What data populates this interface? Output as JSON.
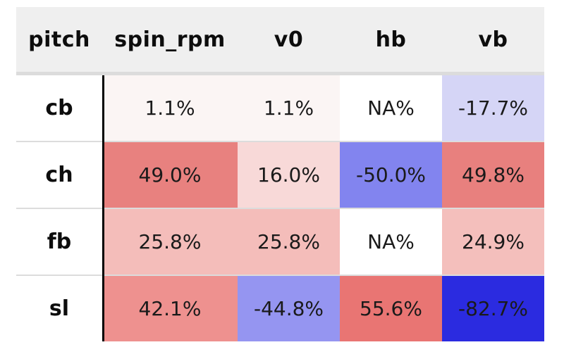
{
  "table": {
    "columns": [
      {
        "label": "pitch"
      },
      {
        "label": "spin_rpm"
      },
      {
        "label": "v0"
      },
      {
        "label": "hb"
      },
      {
        "label": "vb"
      }
    ],
    "rows": [
      {
        "pitch": "cb",
        "cells": [
          {
            "value": "1.1%",
            "bg": "#fbf5f4"
          },
          {
            "value": "1.1%",
            "bg": "#fbf5f4"
          },
          {
            "value": "NA%",
            "bg": "#ffffff"
          },
          {
            "value": "-17.7%",
            "bg": "#d5d5f6"
          }
        ]
      },
      {
        "pitch": "ch",
        "cells": [
          {
            "value": "49.0%",
            "bg": "#e8817f"
          },
          {
            "value": "16.0%",
            "bg": "#f8d9d8"
          },
          {
            "value": "-50.0%",
            "bg": "#8284ef"
          },
          {
            "value": "49.8%",
            "bg": "#e8807e"
          }
        ]
      },
      {
        "pitch": "fb",
        "cells": [
          {
            "value": "25.8%",
            "bg": "#f4bdba"
          },
          {
            "value": "25.8%",
            "bg": "#f4bdba"
          },
          {
            "value": "NA%",
            "bg": "#ffffff"
          },
          {
            "value": "24.9%",
            "bg": "#f4bfbc"
          }
        ]
      },
      {
        "pitch": "sl",
        "cells": [
          {
            "value": "42.1%",
            "bg": "#ee918f"
          },
          {
            "value": "-44.8%",
            "bg": "#9595f1"
          },
          {
            "value": "55.6%",
            "bg": "#e97573"
          },
          {
            "value": "-82.7%",
            "bg": "#2b2be0"
          }
        ]
      }
    ],
    "style_colors": {
      "header_background": "#efefef",
      "header_border": "#dcdcdc",
      "row_separator": "#dcdcdc",
      "pitch_divider": "#000000",
      "positive_color": "red",
      "negative_color": "blue"
    }
  },
  "chart_data": {
    "type": "heatmap",
    "title": "",
    "rows": [
      "cb",
      "ch",
      "fb",
      "sl"
    ],
    "columns": [
      "spin_rpm",
      "v0",
      "hb",
      "vb"
    ],
    "row_axis_label": "pitch",
    "values": [
      [
        1.1,
        1.1,
        null,
        -17.7
      ],
      [
        49.0,
        16.0,
        -50.0,
        49.8
      ],
      [
        25.8,
        25.8,
        null,
        24.9
      ],
      [
        42.1,
        -44.8,
        55.6,
        -82.7
      ]
    ],
    "value_format": "percent",
    "na_label": "NA%",
    "color_scale": "diverging red (positive) to blue (negative), white near zero"
  }
}
